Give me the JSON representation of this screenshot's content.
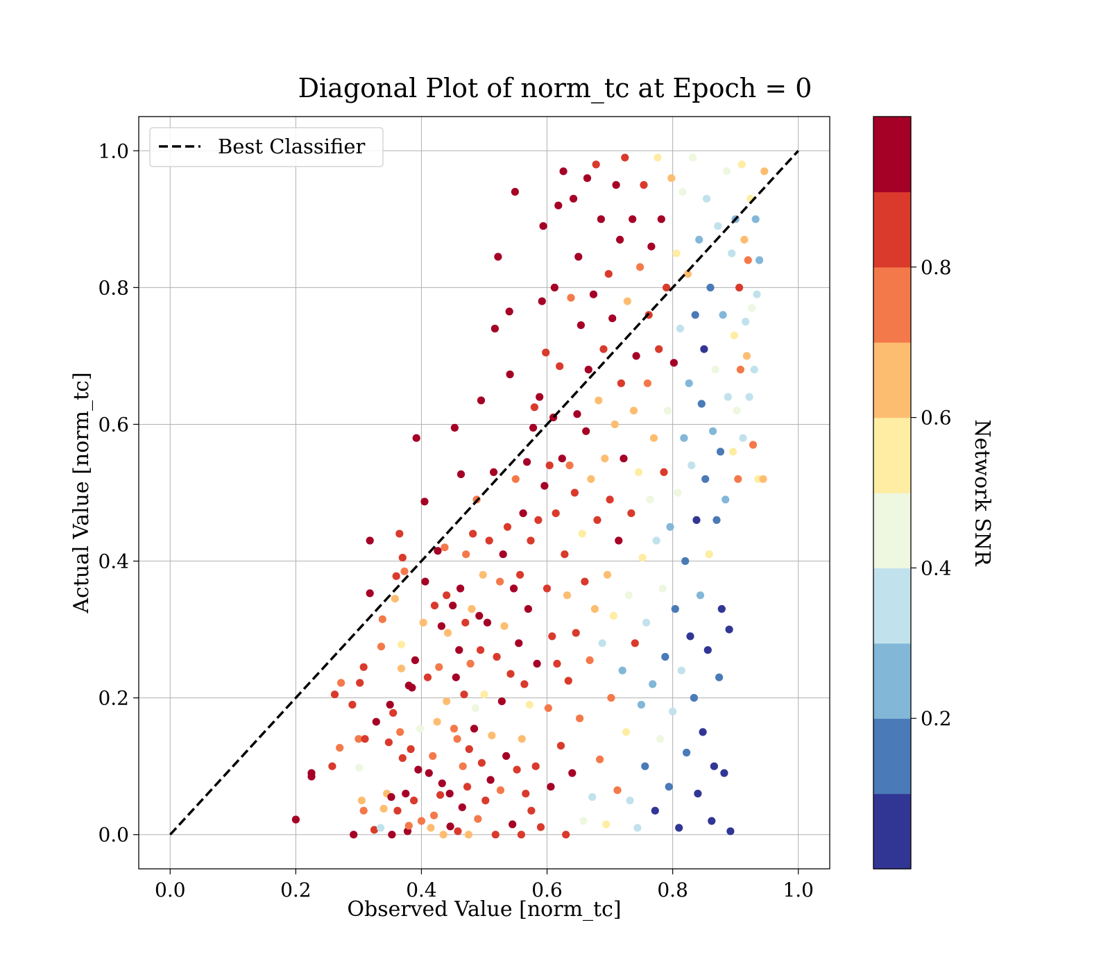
{
  "chart_data": {
    "type": "scatter",
    "title": "Diagonal Plot of norm_tc at Epoch = 0",
    "xlabel": "Observed Value [norm_tc]",
    "ylabel": "Actual Value [norm_tc]",
    "xlim": [
      -0.05,
      1.05
    ],
    "ylim": [
      -0.05,
      1.05
    ],
    "xticks": [
      0.0,
      0.2,
      0.4,
      0.6,
      0.8,
      1.0
    ],
    "yticks": [
      0.0,
      0.2,
      0.4,
      0.6,
      0.8,
      1.0
    ],
    "xtick_labels": [
      "0.0",
      "0.2",
      "0.4",
      "0.6",
      "0.8",
      "1.0"
    ],
    "ytick_labels": [
      "0.0",
      "0.2",
      "0.4",
      "0.6",
      "0.8",
      "1.0"
    ],
    "grid": true,
    "legend": {
      "position": "top-left",
      "entries": [
        "Best Classifier"
      ]
    },
    "reference_line": {
      "name": "Best Classifier",
      "x": [
        0.0,
        1.0
      ],
      "y": [
        0.0,
        1.0
      ],
      "style": "dashed",
      "color": "#000000"
    },
    "colorbar": {
      "label": "Network SNR",
      "range": [
        0.0,
        1.0
      ],
      "ticks": [
        0.2,
        0.4,
        0.6,
        0.8
      ],
      "tick_labels": [
        "0.2",
        "0.4",
        "0.6",
        "0.8"
      ],
      "colors": [
        "#313695",
        "#4575b4",
        "#74add1",
        "#abd9e9",
        "#e0f3f8",
        "#fee090",
        "#fdae61",
        "#f46d43",
        "#d73027",
        "#a50026"
      ],
      "display_colors": [
        "#313695",
        "#4a7ab7",
        "#82b7d8",
        "#c1e2ec",
        "#eef7df",
        "#feeda2",
        "#fdbd71",
        "#f4794a",
        "#d93a2c",
        "#a50026"
      ]
    },
    "points": [
      [
        0.2,
        0.022,
        9
      ],
      [
        0.225,
        0.085,
        9
      ],
      [
        0.225,
        0.09,
        9
      ],
      [
        0.258,
        0.1,
        8
      ],
      [
        0.262,
        0.205,
        8
      ],
      [
        0.27,
        0.127,
        7
      ],
      [
        0.272,
        0.222,
        7
      ],
      [
        0.29,
        0.19,
        8
      ],
      [
        0.292,
        0.0,
        9
      ],
      [
        0.3,
        0.14,
        7
      ],
      [
        0.301,
        0.098,
        4
      ],
      [
        0.302,
        0.222,
        8
      ],
      [
        0.305,
        0.05,
        6
      ],
      [
        0.308,
        0.035,
        7
      ],
      [
        0.308,
        0.245,
        8
      ],
      [
        0.31,
        0.14,
        8
      ],
      [
        0.318,
        0.43,
        9
      ],
      [
        0.318,
        0.353,
        9
      ],
      [
        0.325,
        0.007,
        8
      ],
      [
        0.328,
        0.165,
        9
      ],
      [
        0.335,
        0.01,
        3
      ],
      [
        0.336,
        0.275,
        7
      ],
      [
        0.338,
        0.315,
        7
      ],
      [
        0.34,
        0.038,
        6
      ],
      [
        0.345,
        0.06,
        6
      ],
      [
        0.348,
        0.135,
        8
      ],
      [
        0.35,
        0.19,
        9
      ],
      [
        0.352,
        0.055,
        9
      ],
      [
        0.353,
        0.0,
        9
      ],
      [
        0.355,
        0.178,
        8
      ],
      [
        0.358,
        0.345,
        6
      ],
      [
        0.36,
        0.378,
        8
      ],
      [
        0.362,
        0.035,
        8
      ],
      [
        0.365,
        0.44,
        8
      ],
      [
        0.366,
        0.15,
        7
      ],
      [
        0.368,
        0.243,
        6
      ],
      [
        0.368,
        0.278,
        5
      ],
      [
        0.37,
        0.112,
        8
      ],
      [
        0.37,
        0.405,
        8
      ],
      [
        0.373,
        0.385,
        7
      ],
      [
        0.375,
        0.06,
        9
      ],
      [
        0.378,
        0.005,
        9
      ],
      [
        0.38,
        0.218,
        9
      ],
      [
        0.38,
        0.013,
        7
      ],
      [
        0.383,
        0.125,
        8
      ],
      [
        0.385,
        0.215,
        9
      ],
      [
        0.388,
        0.05,
        8
      ],
      [
        0.39,
        0.255,
        9
      ],
      [
        0.392,
        0.58,
        9
      ],
      [
        0.395,
        0.095,
        9
      ],
      [
        0.398,
        0.155,
        4
      ],
      [
        0.4,
        0.02,
        7
      ],
      [
        0.403,
        0.31,
        6
      ],
      [
        0.405,
        0.487,
        9
      ],
      [
        0.406,
        0.37,
        9
      ],
      [
        0.41,
        0.23,
        8
      ],
      [
        0.412,
        0.09,
        9
      ],
      [
        0.415,
        0.01,
        6
      ],
      [
        0.418,
        0.115,
        7
      ],
      [
        0.42,
        0.028,
        7
      ],
      [
        0.421,
        0.335,
        8
      ],
      [
        0.425,
        0.165,
        6
      ],
      [
        0.426,
        0.415,
        9
      ],
      [
        0.428,
        0.245,
        7
      ],
      [
        0.43,
        0.058,
        8
      ],
      [
        0.432,
        0.305,
        9
      ],
      [
        0.433,
        0.075,
        9
      ],
      [
        0.435,
        0.0,
        6
      ],
      [
        0.437,
        0.42,
        7
      ],
      [
        0.44,
        0.195,
        6
      ],
      [
        0.44,
        0.35,
        8
      ],
      [
        0.442,
        0.295,
        6
      ],
      [
        0.445,
        0.06,
        9
      ],
      [
        0.446,
        0.012,
        9
      ],
      [
        0.45,
        0.335,
        9
      ],
      [
        0.452,
        0.155,
        7
      ],
      [
        0.453,
        0.595,
        9
      ],
      [
        0.455,
        0.23,
        9
      ],
      [
        0.457,
        0.14,
        7
      ],
      [
        0.458,
        0.005,
        8
      ],
      [
        0.46,
        0.27,
        9
      ],
      [
        0.462,
        0.36,
        9
      ],
      [
        0.463,
        0.527,
        9
      ],
      [
        0.465,
        0.04,
        9
      ],
      [
        0.466,
        0.1,
        7
      ],
      [
        0.468,
        0.205,
        8
      ],
      [
        0.47,
        0.31,
        8
      ],
      [
        0.471,
        0.41,
        7
      ],
      [
        0.473,
        0.07,
        8
      ],
      [
        0.475,
        0.0,
        6
      ],
      [
        0.476,
        0.125,
        8
      ],
      [
        0.478,
        0.25,
        7
      ],
      [
        0.48,
        0.33,
        6
      ],
      [
        0.482,
        0.44,
        8
      ],
      [
        0.484,
        0.155,
        9
      ],
      [
        0.486,
        0.185,
        4
      ],
      [
        0.488,
        0.49,
        7
      ],
      [
        0.49,
        0.023,
        7
      ],
      [
        0.492,
        0.32,
        9
      ],
      [
        0.494,
        0.27,
        8
      ],
      [
        0.495,
        0.635,
        9
      ],
      [
        0.496,
        0.105,
        8
      ],
      [
        0.498,
        0.38,
        6
      ],
      [
        0.5,
        0.205,
        5
      ],
      [
        0.502,
        0.05,
        8
      ],
      [
        0.505,
        0.31,
        9
      ],
      [
        0.508,
        0.43,
        8
      ],
      [
        0.51,
        0.08,
        9
      ],
      [
        0.512,
        0.145,
        6
      ],
      [
        0.515,
        0.53,
        9
      ],
      [
        0.517,
        0.74,
        9
      ],
      [
        0.518,
        0.0,
        8
      ],
      [
        0.52,
        0.26,
        8
      ],
      [
        0.522,
        0.845,
        9
      ],
      [
        0.525,
        0.37,
        7
      ],
      [
        0.526,
        0.065,
        7
      ],
      [
        0.528,
        0.195,
        9
      ],
      [
        0.53,
        0.41,
        9
      ],
      [
        0.532,
        0.305,
        6
      ],
      [
        0.535,
        0.115,
        9
      ],
      [
        0.537,
        0.45,
        8
      ],
      [
        0.54,
        0.765,
        9
      ],
      [
        0.541,
        0.673,
        9
      ],
      [
        0.542,
        0.235,
        8
      ],
      [
        0.545,
        0.015,
        9
      ],
      [
        0.547,
        0.36,
        9
      ],
      [
        0.549,
        0.94,
        9
      ],
      [
        0.55,
        0.52,
        7
      ],
      [
        0.552,
        0.095,
        8
      ],
      [
        0.555,
        0.28,
        9
      ],
      [
        0.557,
        0.38,
        8
      ],
      [
        0.559,
        0.0,
        8
      ],
      [
        0.56,
        0.14,
        6
      ],
      [
        0.562,
        0.47,
        9
      ],
      [
        0.564,
        0.22,
        8
      ],
      [
        0.566,
        0.06,
        8
      ],
      [
        0.568,
        0.545,
        9
      ],
      [
        0.57,
        0.33,
        9
      ],
      [
        0.572,
        0.19,
        5
      ],
      [
        0.574,
        0.43,
        8
      ],
      [
        0.575,
        0.035,
        8
      ],
      [
        0.578,
        0.595,
        9
      ],
      [
        0.58,
        0.625,
        8
      ],
      [
        0.582,
        0.1,
        8
      ],
      [
        0.584,
        0.25,
        9
      ],
      [
        0.586,
        0.46,
        8
      ],
      [
        0.588,
        0.64,
        9
      ],
      [
        0.59,
        0.011,
        8
      ],
      [
        0.592,
        0.78,
        9
      ],
      [
        0.594,
        0.89,
        9
      ],
      [
        0.596,
        0.51,
        9
      ],
      [
        0.598,
        0.705,
        8
      ],
      [
        0.6,
        0.36,
        8
      ],
      [
        0.602,
        0.185,
        7
      ],
      [
        0.604,
        0.54,
        8
      ],
      [
        0.606,
        0.07,
        9
      ],
      [
        0.608,
        0.29,
        8
      ],
      [
        0.61,
        0.61,
        9
      ],
      [
        0.612,
        0.8,
        9
      ],
      [
        0.614,
        0.47,
        8
      ],
      [
        0.616,
        0.25,
        8
      ],
      [
        0.618,
        0.92,
        9
      ],
      [
        0.62,
        0.685,
        8
      ],
      [
        0.622,
        0.13,
        8
      ],
      [
        0.624,
        0.55,
        9
      ],
      [
        0.626,
        0.97,
        9
      ],
      [
        0.628,
        0.41,
        8
      ],
      [
        0.63,
        0.0,
        8
      ],
      [
        0.632,
        0.35,
        6
      ],
      [
        0.634,
        0.225,
        8
      ],
      [
        0.636,
        0.54,
        7
      ],
      [
        0.638,
        0.785,
        7
      ],
      [
        0.64,
        0.09,
        9
      ],
      [
        0.642,
        0.93,
        9
      ],
      [
        0.644,
        0.5,
        8
      ],
      [
        0.646,
        0.295,
        8
      ],
      [
        0.648,
        0.615,
        9
      ],
      [
        0.65,
        0.845,
        9
      ],
      [
        0.652,
        0.17,
        7
      ],
      [
        0.654,
        0.745,
        9
      ],
      [
        0.656,
        0.44,
        5
      ],
      [
        0.658,
        0.02,
        4
      ],
      [
        0.66,
        0.37,
        8
      ],
      [
        0.662,
        0.59,
        9
      ],
      [
        0.664,
        0.96,
        9
      ],
      [
        0.666,
        0.68,
        9
      ],
      [
        0.668,
        0.255,
        7
      ],
      [
        0.67,
        0.52,
        6
      ],
      [
        0.672,
        0.055,
        3
      ],
      [
        0.674,
        0.79,
        9
      ],
      [
        0.676,
        0.33,
        6
      ],
      [
        0.678,
        0.98,
        8
      ],
      [
        0.68,
        0.46,
        8
      ],
      [
        0.682,
        0.635,
        6
      ],
      [
        0.684,
        0.11,
        7
      ],
      [
        0.686,
        0.9,
        9
      ],
      [
        0.688,
        0.28,
        3
      ],
      [
        0.69,
        0.71,
        8
      ],
      [
        0.692,
        0.55,
        6
      ],
      [
        0.694,
        0.015,
        5
      ],
      [
        0.696,
        0.38,
        6
      ],
      [
        0.698,
        0.82,
        8
      ],
      [
        0.7,
        0.49,
        8
      ],
      [
        0.702,
        0.2,
        7
      ],
      [
        0.704,
        0.755,
        9
      ],
      [
        0.706,
        0.32,
        5
      ],
      [
        0.708,
        0.6,
        6
      ],
      [
        0.71,
        0.95,
        9
      ],
      [
        0.712,
        0.065,
        7
      ],
      [
        0.714,
        0.43,
        9
      ],
      [
        0.716,
        0.87,
        9
      ],
      [
        0.718,
        0.66,
        8
      ],
      [
        0.72,
        0.24,
        2
      ],
      [
        0.722,
        0.55,
        9
      ],
      [
        0.724,
        0.99,
        8
      ],
      [
        0.726,
        0.15,
        5
      ],
      [
        0.728,
        0.78,
        6
      ],
      [
        0.73,
        0.35,
        4
      ],
      [
        0.732,
        0.05,
        3
      ],
      [
        0.734,
        0.47,
        8
      ],
      [
        0.736,
        0.9,
        9
      ],
      [
        0.738,
        0.62,
        6
      ],
      [
        0.74,
        0.28,
        8
      ],
      [
        0.742,
        0.7,
        9
      ],
      [
        0.744,
        0.01,
        3
      ],
      [
        0.746,
        0.53,
        5
      ],
      [
        0.748,
        0.83,
        7
      ],
      [
        0.75,
        0.19,
        2
      ],
      [
        0.752,
        0.405,
        5
      ],
      [
        0.754,
        0.95,
        8
      ],
      [
        0.756,
        0.1,
        1
      ],
      [
        0.758,
        0.31,
        3
      ],
      [
        0.76,
        0.66,
        7
      ],
      [
        0.762,
        0.76,
        8
      ],
      [
        0.764,
        0.49,
        4
      ],
      [
        0.766,
        0.86,
        9
      ],
      [
        0.768,
        0.22,
        2
      ],
      [
        0.77,
        0.58,
        6
      ],
      [
        0.772,
        0.035,
        0
      ],
      [
        0.774,
        0.43,
        3
      ],
      [
        0.776,
        0.99,
        5
      ],
      [
        0.778,
        0.71,
        8
      ],
      [
        0.78,
        0.14,
        4
      ],
      [
        0.782,
        0.9,
        9
      ],
      [
        0.784,
        0.36,
        4
      ],
      [
        0.786,
        0.53,
        8
      ],
      [
        0.788,
        0.26,
        1
      ],
      [
        0.79,
        0.8,
        8
      ],
      [
        0.792,
        0.62,
        4
      ],
      [
        0.794,
        0.07,
        1
      ],
      [
        0.796,
        0.45,
        2
      ],
      [
        0.798,
        0.96,
        6
      ],
      [
        0.8,
        0.18,
        3
      ],
      [
        0.802,
        0.69,
        9
      ],
      [
        0.804,
        0.33,
        1
      ],
      [
        0.806,
        0.85,
        5
      ],
      [
        0.808,
        0.5,
        4
      ],
      [
        0.81,
        0.01,
        0
      ],
      [
        0.812,
        0.74,
        3
      ],
      [
        0.814,
        0.24,
        3
      ],
      [
        0.816,
        0.94,
        4
      ],
      [
        0.818,
        0.58,
        2
      ],
      [
        0.82,
        0.4,
        1
      ],
      [
        0.822,
        0.12,
        1
      ],
      [
        0.824,
        0.82,
        6
      ],
      [
        0.826,
        0.66,
        2
      ],
      [
        0.828,
        0.29,
        0
      ],
      [
        0.83,
        0.54,
        3
      ],
      [
        0.832,
        0.99,
        4
      ],
      [
        0.834,
        0.2,
        1
      ],
      [
        0.836,
        0.76,
        1
      ],
      [
        0.838,
        0.46,
        0
      ],
      [
        0.84,
        0.06,
        0
      ],
      [
        0.842,
        0.87,
        2
      ],
      [
        0.844,
        0.35,
        2
      ],
      [
        0.846,
        0.63,
        1
      ],
      [
        0.848,
        0.15,
        0
      ],
      [
        0.85,
        0.71,
        0
      ],
      [
        0.852,
        0.52,
        1
      ],
      [
        0.854,
        0.93,
        3
      ],
      [
        0.856,
        0.27,
        0
      ],
      [
        0.858,
        0.41,
        5
      ],
      [
        0.86,
        0.8,
        1
      ],
      [
        0.862,
        0.02,
        0
      ],
      [
        0.864,
        0.59,
        2
      ],
      [
        0.866,
        0.1,
        0
      ],
      [
        0.868,
        0.68,
        4
      ],
      [
        0.87,
        0.46,
        1
      ],
      [
        0.872,
        0.89,
        3
      ],
      [
        0.874,
        0.23,
        1
      ],
      [
        0.876,
        0.56,
        1
      ],
      [
        0.878,
        0.33,
        0
      ],
      [
        0.88,
        0.76,
        2
      ],
      [
        0.882,
        0.09,
        0
      ],
      [
        0.884,
        0.49,
        2
      ],
      [
        0.886,
        0.97,
        4
      ],
      [
        0.888,
        0.64,
        3
      ],
      [
        0.89,
        0.3,
        0
      ],
      [
        0.892,
        0.005,
        0
      ],
      [
        0.894,
        0.85,
        3
      ],
      [
        0.896,
        0.56,
        5
      ],
      [
        0.898,
        0.73,
        5
      ],
      [
        0.9,
        0.9,
        2
      ],
      [
        0.902,
        0.62,
        4
      ],
      [
        0.904,
        0.52,
        7
      ],
      [
        0.906,
        0.8,
        8
      ],
      [
        0.908,
        0.68,
        7
      ],
      [
        0.91,
        0.98,
        5
      ],
      [
        0.912,
        0.58,
        3
      ],
      [
        0.914,
        0.87,
        6
      ],
      [
        0.916,
        0.75,
        3
      ],
      [
        0.918,
        0.7,
        6
      ],
      [
        0.92,
        0.84,
        7
      ],
      [
        0.922,
        0.64,
        3
      ],
      [
        0.924,
        0.93,
        5
      ],
      [
        0.926,
        0.77,
        4
      ],
      [
        0.928,
        0.57,
        7
      ],
      [
        0.93,
        0.68,
        3
      ],
      [
        0.932,
        0.9,
        2
      ],
      [
        0.934,
        0.79,
        3
      ],
      [
        0.936,
        0.52,
        5
      ],
      [
        0.938,
        0.84,
        2
      ],
      [
        0.944,
        0.52,
        6
      ],
      [
        0.946,
        0.97,
        6
      ]
    ]
  }
}
